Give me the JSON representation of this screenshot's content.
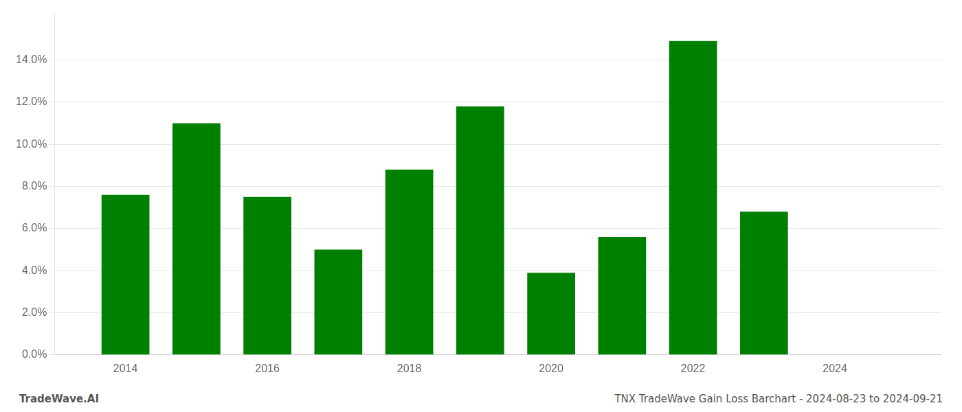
{
  "chart_data": {
    "type": "bar",
    "x": [
      2014,
      2015,
      2016,
      2017,
      2018,
      2019,
      2020,
      2021,
      2022,
      2023
    ],
    "values": [
      0.076,
      0.11,
      0.075,
      0.05,
      0.088,
      0.118,
      0.039,
      0.056,
      0.149,
      0.068
    ],
    "color": "#008000",
    "xlim": [
      2013.0,
      2025.5
    ],
    "xticks": [
      2014,
      2016,
      2018,
      2020,
      2022,
      2024
    ],
    "ylim": [
      0,
      0.162
    ],
    "yticks": [
      {
        "value": 0.0,
        "label": "0.0%"
      },
      {
        "value": 0.02,
        "label": "2.0%"
      },
      {
        "value": 0.04,
        "label": "4.0%"
      },
      {
        "value": 0.06,
        "label": "6.0%"
      },
      {
        "value": 0.08,
        "label": "8.0%"
      },
      {
        "value": 0.1,
        "label": "10.0%"
      },
      {
        "value": 0.12,
        "label": "12.0%"
      },
      {
        "value": 0.14,
        "label": "14.0%"
      }
    ],
    "grid": "y",
    "annotations": [
      "TradeWave.AI",
      "TNX TradeWave Gain Loss Barchart - 2024-08-23 to 2024-09-21"
    ]
  }
}
